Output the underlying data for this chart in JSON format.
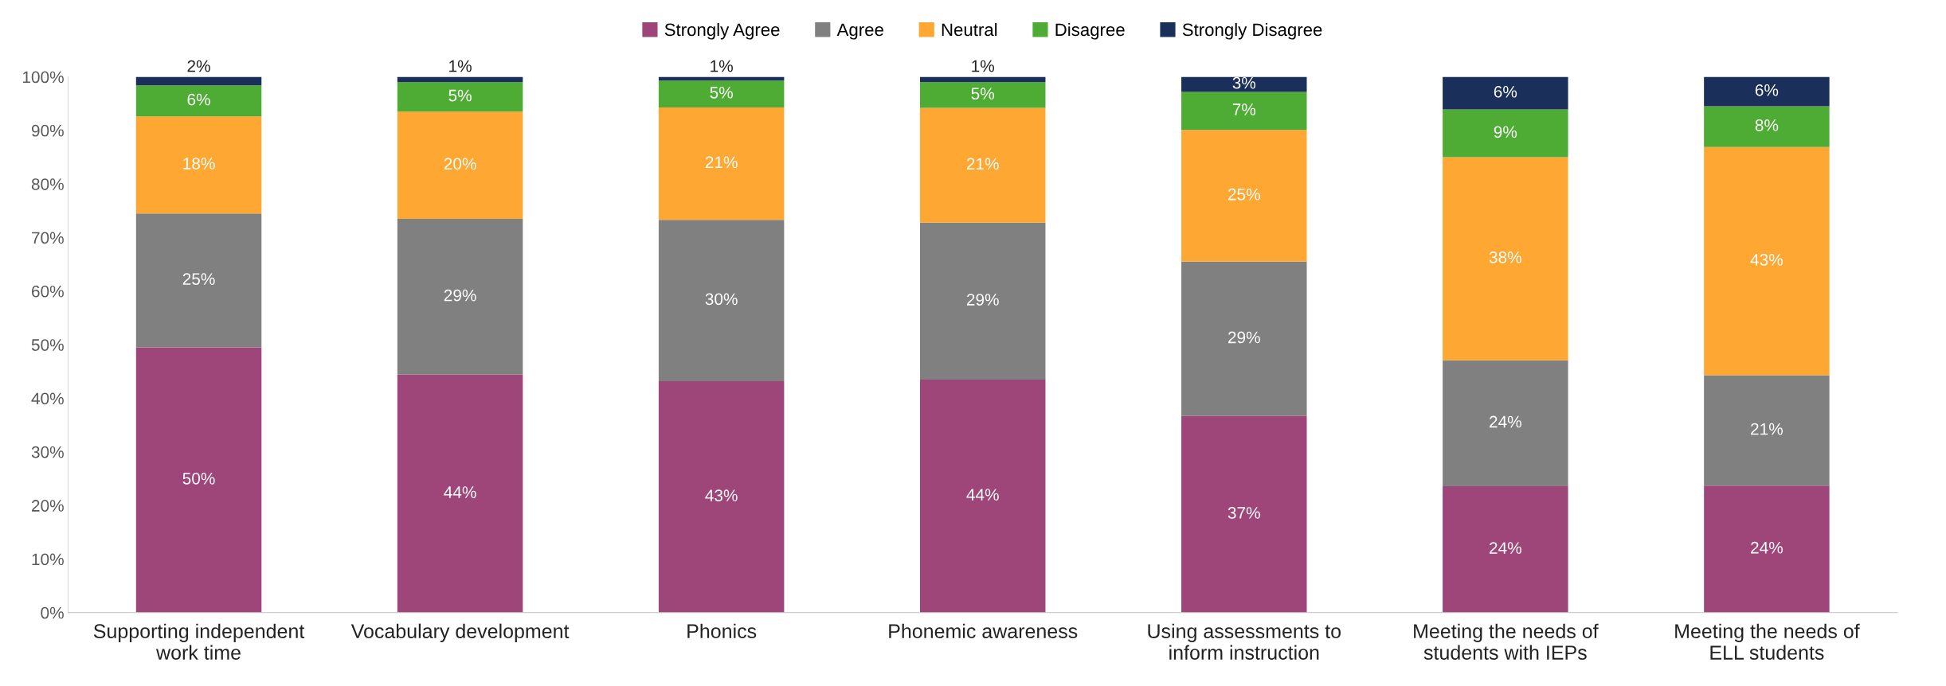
{
  "chart_data": {
    "type": "bar",
    "stacked": true,
    "categories": [
      "Supporting independent work time",
      "Vocabulary development",
      "Phonics",
      "Phonemic awareness",
      "Using assessments to inform instruction",
      "Meeting the needs of students with IEPs",
      "Meeting the needs of ELL students"
    ],
    "series": [
      {
        "name": "Strongly Agree",
        "color": "#9e457a",
        "values": [
          49.5,
          44.4,
          43.2,
          43.5,
          36.7,
          23.6,
          23.7
        ],
        "value_labels": [
          "50%",
          "44%",
          "43%",
          "44%",
          "37%",
          "24%",
          "24%"
        ]
      },
      {
        "name": "Agree",
        "color": "#808080",
        "values": [
          25.0,
          29.1,
          30.1,
          29.3,
          28.8,
          23.5,
          20.6
        ],
        "value_labels": [
          "25%",
          "29%",
          "30%",
          "29%",
          "29%",
          "24%",
          "21%"
        ]
      },
      {
        "name": "Neutral",
        "color": "#ffa733",
        "values": [
          18.1,
          20.0,
          21.0,
          21.4,
          24.6,
          37.9,
          42.6
        ],
        "value_labels": [
          "18%",
          "20%",
          "21%",
          "21%",
          "25%",
          "38%",
          "43%"
        ]
      },
      {
        "name": "Disagree",
        "color": "#4eac34",
        "values": [
          5.8,
          5.5,
          5.0,
          4.8,
          7.1,
          8.9,
          7.6
        ],
        "value_labels": [
          "6%",
          "5%",
          "5%",
          "5%",
          "7%",
          "9%",
          "8%"
        ]
      },
      {
        "name": "Strongly Disagree",
        "color": "#1a2f5a",
        "values": [
          1.6,
          1.0,
          0.7,
          1.0,
          2.8,
          6.1,
          5.5
        ],
        "value_labels": [
          "2%",
          "1%",
          "1%",
          "1%",
          "3%",
          "6%",
          "6%"
        ]
      }
    ],
    "ylim": [
      0,
      100
    ],
    "yticks": [
      {
        "value": 0,
        "label": "0%"
      },
      {
        "value": 10,
        "label": "10%"
      },
      {
        "value": 20,
        "label": "20%"
      },
      {
        "value": 30,
        "label": "30%"
      },
      {
        "value": 40,
        "label": "40%"
      },
      {
        "value": 50,
        "label": "50%"
      },
      {
        "value": 60,
        "label": "60%"
      },
      {
        "value": 70,
        "label": "70%"
      },
      {
        "value": 80,
        "label": "80%"
      },
      {
        "value": 90,
        "label": "90%"
      },
      {
        "value": 100,
        "label": "100%"
      }
    ],
    "legend": "top",
    "grid": false
  }
}
